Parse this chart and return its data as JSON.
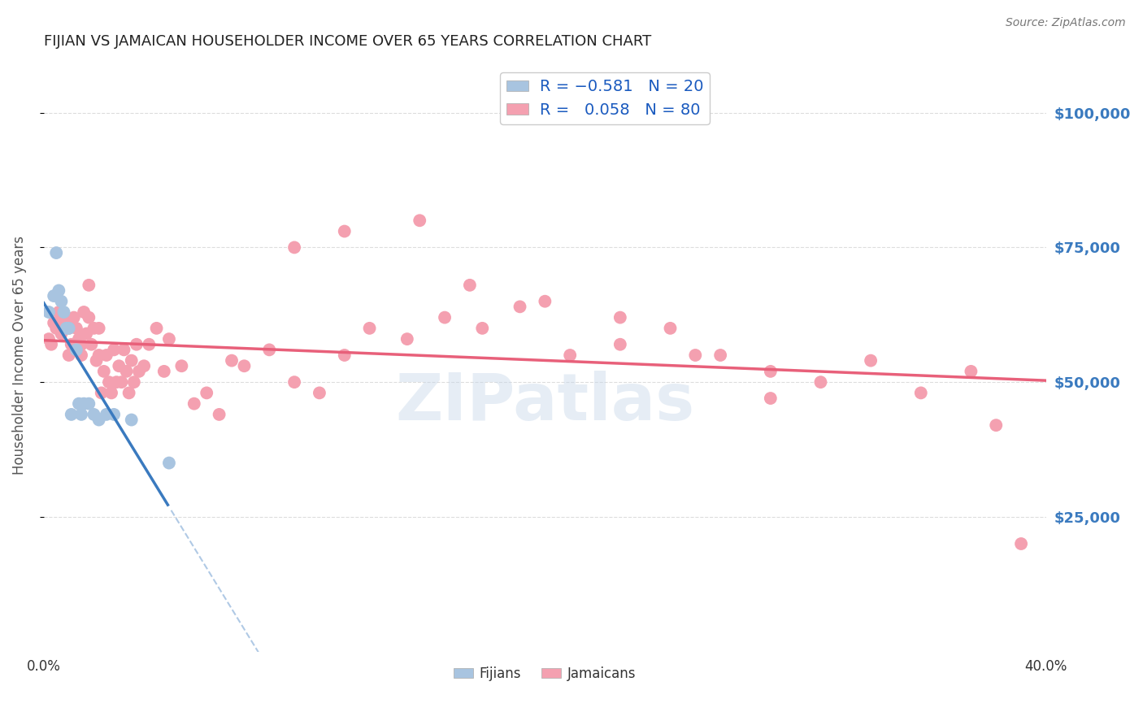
{
  "title": "FIJIAN VS JAMAICAN HOUSEHOLDER INCOME OVER 65 YEARS CORRELATION CHART",
  "source": "Source: ZipAtlas.com",
  "ylabel": "Householder Income Over 65 years",
  "ytick_labels": [
    "$25,000",
    "$50,000",
    "$75,000",
    "$100,000"
  ],
  "ytick_values": [
    25000,
    50000,
    75000,
    100000
  ],
  "xlim": [
    0.0,
    0.4
  ],
  "ylim": [
    0,
    110000
  ],
  "fijian_color": "#a8c4e0",
  "jamaican_color": "#f4a0b0",
  "fijian_line_color": "#3a7abf",
  "jamaican_line_color": "#e8607a",
  "background_color": "#ffffff",
  "grid_color": "#dddddd",
  "title_color": "#222222",
  "axis_label_color": "#555555",
  "right_tick_color": "#3a7abf",
  "watermark_text": "ZIPatlas",
  "watermark_color": "#c8d8ea",
  "watermark_alpha": 0.45,
  "fijian_x": [
    0.002,
    0.004,
    0.005,
    0.006,
    0.007,
    0.008,
    0.009,
    0.01,
    0.011,
    0.013,
    0.014,
    0.015,
    0.016,
    0.018,
    0.02,
    0.022,
    0.025,
    0.028,
    0.035,
    0.05
  ],
  "fijian_y": [
    63000,
    66000,
    74000,
    67000,
    65000,
    63000,
    60000,
    60000,
    44000,
    56000,
    46000,
    44000,
    46000,
    46000,
    44000,
    43000,
    44000,
    44000,
    43000,
    35000
  ],
  "jamaican_x": [
    0.002,
    0.003,
    0.004,
    0.005,
    0.006,
    0.007,
    0.008,
    0.009,
    0.01,
    0.01,
    0.011,
    0.012,
    0.013,
    0.014,
    0.015,
    0.015,
    0.016,
    0.017,
    0.018,
    0.018,
    0.019,
    0.02,
    0.021,
    0.022,
    0.022,
    0.023,
    0.024,
    0.025,
    0.026,
    0.027,
    0.028,
    0.029,
    0.03,
    0.031,
    0.032,
    0.033,
    0.034,
    0.035,
    0.036,
    0.037,
    0.038,
    0.04,
    0.042,
    0.045,
    0.048,
    0.05,
    0.055,
    0.06,
    0.065,
    0.07,
    0.075,
    0.08,
    0.09,
    0.1,
    0.11,
    0.12,
    0.13,
    0.145,
    0.16,
    0.175,
    0.19,
    0.21,
    0.23,
    0.25,
    0.27,
    0.29,
    0.31,
    0.33,
    0.35,
    0.37,
    0.38,
    0.39,
    0.1,
    0.12,
    0.15,
    0.17,
    0.2,
    0.23,
    0.26,
    0.29
  ],
  "jamaican_y": [
    58000,
    57000,
    61000,
    60000,
    63000,
    59000,
    62000,
    61000,
    60000,
    55000,
    57000,
    62000,
    60000,
    58000,
    55000,
    57000,
    63000,
    59000,
    68000,
    62000,
    57000,
    60000,
    54000,
    60000,
    55000,
    48000,
    52000,
    55000,
    50000,
    48000,
    56000,
    50000,
    53000,
    50000,
    56000,
    52000,
    48000,
    54000,
    50000,
    57000,
    52000,
    53000,
    57000,
    60000,
    52000,
    58000,
    53000,
    46000,
    48000,
    44000,
    54000,
    53000,
    56000,
    50000,
    48000,
    55000,
    60000,
    58000,
    62000,
    60000,
    64000,
    55000,
    57000,
    60000,
    55000,
    52000,
    50000,
    54000,
    48000,
    52000,
    42000,
    20000,
    75000,
    78000,
    80000,
    68000,
    65000,
    62000,
    55000,
    47000
  ]
}
